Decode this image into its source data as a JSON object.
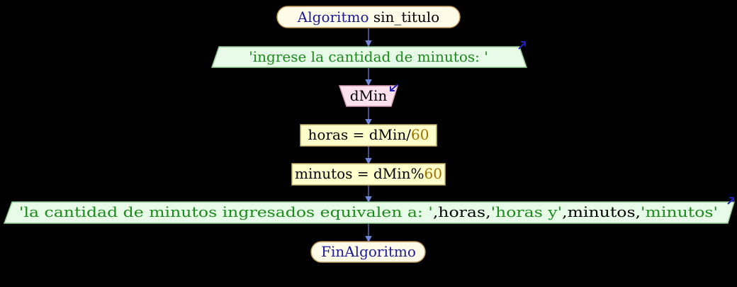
{
  "colors": {
    "background": "#000000",
    "connector": "#6f86d6",
    "terminal_fill": "#fffbe9",
    "terminal_border": "#c49a5a",
    "output_fill": "#e8fbe8",
    "output_border": "#8fc98f",
    "input_fill": "#fde2ee",
    "input_border": "#d49ab0",
    "process_fill": "#ffffcc",
    "process_border": "#c8b36a",
    "keyword": "#1a1a9a",
    "string": "#1a8a1a",
    "number": "#a07000",
    "arrow_icon": "#2020c0"
  },
  "flow": {
    "start": {
      "keyword": "Algoritmo",
      "name": "sin_titulo"
    },
    "output1": {
      "text": "'ingrese la cantidad de minutos: '"
    },
    "input1": {
      "var": "dMin"
    },
    "assign1": {
      "lhs": "horas = dMin/",
      "num": "60"
    },
    "assign2": {
      "lhs": "minutos = dMin%",
      "num": "60"
    },
    "output2": {
      "s1": "'la cantidad de minutos ingresados equivalen a: '",
      "c1": ",",
      "v1": "horas",
      "c2": ",",
      "s2": "'horas y'",
      "c3": ",",
      "v2": "minutos",
      "c4": ",",
      "s3": "'minutos'"
    },
    "end": {
      "keyword": "FinAlgoritmo"
    }
  }
}
